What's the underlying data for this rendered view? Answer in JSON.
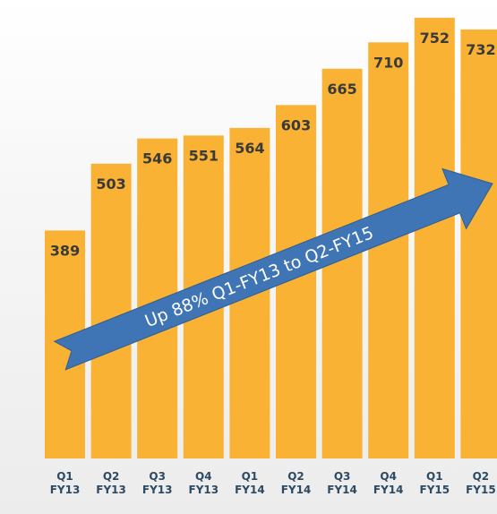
{
  "chart_data": {
    "type": "bar",
    "categories": [
      [
        "Q1",
        "FY13"
      ],
      [
        "Q2",
        "FY13"
      ],
      [
        "Q3",
        "FY13"
      ],
      [
        "Q4",
        "FY13"
      ],
      [
        "Q1",
        "FY14"
      ],
      [
        "Q2",
        "FY14"
      ],
      [
        "Q3",
        "FY14"
      ],
      [
        "Q4",
        "FY14"
      ],
      [
        "Q1",
        "FY15"
      ],
      [
        "Q2",
        "FY15"
      ]
    ],
    "values": [
      389,
      503,
      546,
      551,
      564,
      603,
      665,
      710,
      752,
      732
    ],
    "title": "",
    "xlabel": "",
    "ylabel": "",
    "grid": false,
    "annotation": "Up 88% Q1-FY13 to Q2-FY15"
  },
  "colors": {
    "bar": "#F9B233",
    "value_label": "#3a3a3a",
    "tick_label": "#2e4a63",
    "arrow": "#3f74b5",
    "arrow_text": "#ffffff"
  }
}
